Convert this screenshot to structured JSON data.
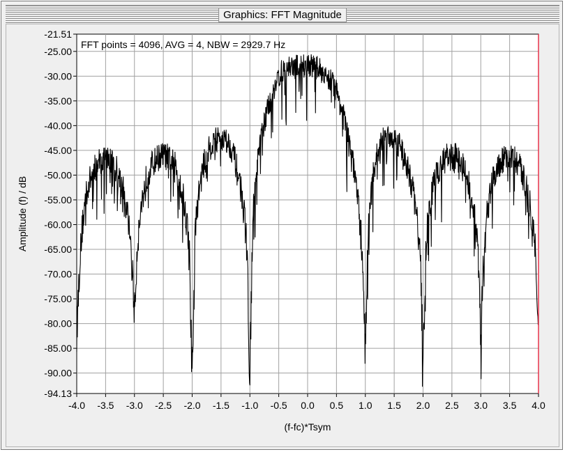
{
  "window": {
    "title": "Graphics: FFT Magnitude"
  },
  "chart_data": {
    "type": "line",
    "title": "",
    "xlabel": "(f-fc)*Tsym",
    "ylabel": "Amplitude (f) / dB",
    "xlim": [
      -4.0,
      4.0
    ],
    "ylim": [
      -94.13,
      -21.51
    ],
    "x_ticks": [
      "-4.0",
      "-3.5",
      "-3.0",
      "-2.5",
      "-2.0",
      "-1.5",
      "-1.0",
      "-0.5",
      "0.0",
      "0.5",
      "1.0",
      "1.5",
      "2.0",
      "2.5",
      "3.0",
      "3.5",
      "4.0"
    ],
    "y_ticks": [
      "-21.51",
      "-25.00",
      "-30.00",
      "-35.00",
      "-40.00",
      "-45.00",
      "-50.00",
      "-55.00",
      "-60.00",
      "-65.00",
      "-70.00",
      "-75.00",
      "-80.00",
      "-85.00",
      "-90.00",
      "-94.13"
    ],
    "annotation": "FFT points = 4096, AVG = 4, NBW = 2929.7 Hz",
    "grid": true,
    "series": [
      {
        "color": "#000000",
        "x": [
          -4.0,
          -3.95,
          -3.9,
          -3.85,
          -3.8,
          -3.7,
          -3.6,
          -3.5,
          -3.4,
          -3.3,
          -3.2,
          -3.15,
          -3.1,
          -3.05,
          -3.0,
          -2.95,
          -2.9,
          -2.85,
          -2.8,
          -2.7,
          -2.6,
          -2.5,
          -2.4,
          -2.3,
          -2.2,
          -2.15,
          -2.1,
          -2.05,
          -2.0,
          -1.95,
          -1.9,
          -1.85,
          -1.8,
          -1.7,
          -1.6,
          -1.5,
          -1.4,
          -1.3,
          -1.2,
          -1.15,
          -1.1,
          -1.05,
          -1.0,
          -0.95,
          -0.9,
          -0.85,
          -0.8,
          -0.7,
          -0.6,
          -0.5,
          -0.4,
          -0.3,
          -0.2,
          -0.1,
          0.0,
          0.1,
          0.2,
          0.3,
          0.4,
          0.5,
          0.6,
          0.7,
          0.8,
          0.85,
          0.9,
          0.95,
          1.0,
          1.05,
          1.1,
          1.15,
          1.2,
          1.3,
          1.4,
          1.5,
          1.6,
          1.7,
          1.8,
          1.85,
          1.9,
          1.95,
          2.0,
          2.05,
          2.1,
          2.15,
          2.2,
          2.3,
          2.4,
          2.5,
          2.6,
          2.7,
          2.8,
          2.85,
          2.9,
          2.95,
          3.0,
          3.05,
          3.1,
          3.15,
          3.2,
          3.3,
          3.4,
          3.5,
          3.6,
          3.7,
          3.8,
          3.85,
          3.9,
          3.95,
          4.0
        ],
        "y": [
          -82,
          -68,
          -60,
          -55,
          -52,
          -49,
          -47,
          -46.5,
          -47,
          -49,
          -53,
          -56,
          -60,
          -65,
          -78,
          -64,
          -58,
          -54,
          -51,
          -48,
          -46.5,
          -46,
          -46.5,
          -48,
          -52,
          -55,
          -59,
          -64,
          -92,
          -62,
          -55,
          -51,
          -48,
          -44.5,
          -43,
          -42.5,
          -43,
          -45,
          -50,
          -53,
          -58,
          -64,
          -92,
          -58,
          -52,
          -46,
          -42,
          -37,
          -33,
          -30,
          -28.5,
          -28,
          -28,
          -28,
          -27.5,
          -28,
          -28.5,
          -29.5,
          -31,
          -33,
          -37,
          -42,
          -48,
          -53,
          -59,
          -66,
          -84,
          -62,
          -54,
          -49,
          -46,
          -43,
          -42,
          -42.5,
          -44,
          -47,
          -52,
          -55,
          -59,
          -65,
          -88,
          -64,
          -58,
          -54,
          -51,
          -48,
          -46.5,
          -46,
          -46.5,
          -48,
          -52,
          -55,
          -59,
          -65,
          -83,
          -64,
          -58,
          -54,
          -51,
          -48,
          -46.5,
          -46.5,
          -47,
          -49,
          -53,
          -56,
          -60,
          -65,
          -79
        ]
      }
    ]
  }
}
